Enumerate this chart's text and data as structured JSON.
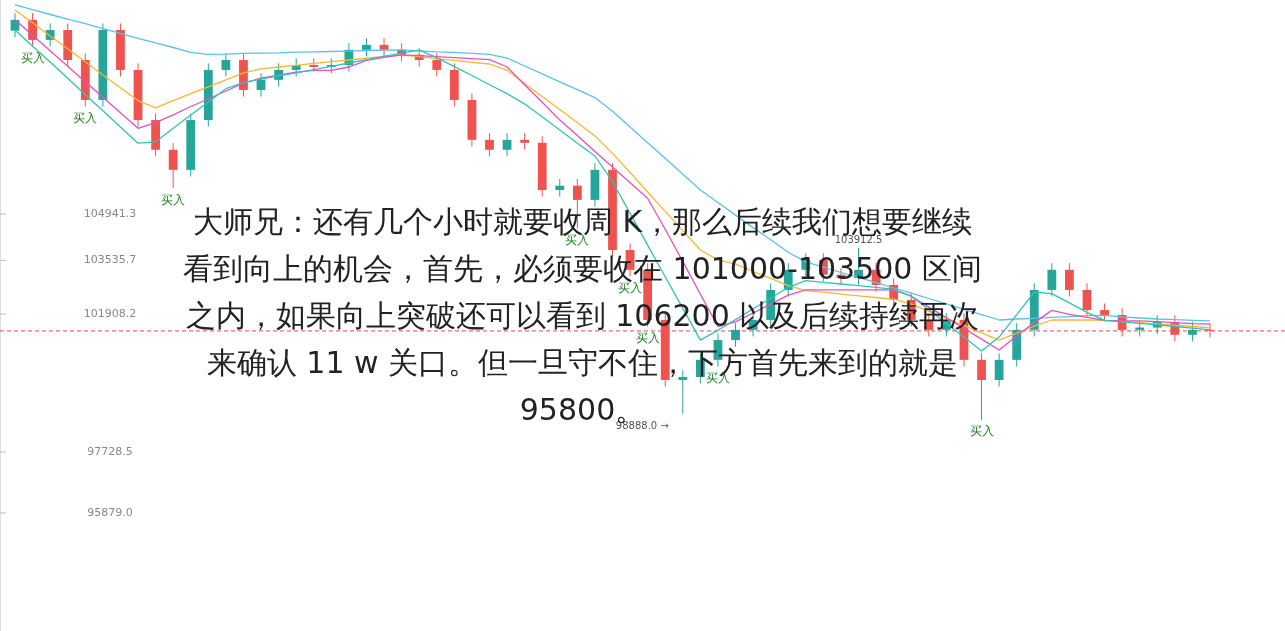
{
  "chart_data": {
    "type": "candlestick",
    "categories": [
      null,
      null,
      null,
      null,
      null,
      null,
      null,
      null,
      null,
      null,
      null,
      null,
      null,
      null,
      null,
      null,
      null,
      null,
      null,
      null,
      null,
      null,
      null,
      null,
      null,
      null,
      null,
      null,
      null,
      null,
      null,
      null,
      null,
      null,
      null,
      null,
      null,
      null,
      null,
      null,
      null,
      null,
      null,
      null,
      null,
      null,
      null,
      null,
      null,
      null,
      null,
      null,
      null,
      null,
      null,
      null,
      null,
      null,
      null,
      null,
      null,
      null,
      null,
      null,
      null,
      null,
      null,
      null,
      null
    ],
    "ohlc": [
      [
        110500,
        111030,
        110300,
        110830
      ],
      [
        110830,
        111030,
        110020,
        110220
      ],
      [
        110220,
        110720,
        110020,
        110520
      ],
      [
        110520,
        110720,
        109410,
        109610
      ],
      [
        109610,
        109810,
        108200,
        108400
      ],
      [
        108400,
        110720,
        108200,
        110520
      ],
      [
        110520,
        110720,
        109110,
        109310
      ],
      [
        109310,
        109510,
        107590,
        107790
      ],
      [
        107790,
        107990,
        106690,
        106890
      ],
      [
        106890,
        107090,
        105730,
        106280
      ],
      [
        106280,
        107990,
        106080,
        107790
      ],
      [
        107790,
        109510,
        107590,
        109310
      ],
      [
        109310,
        109810,
        109110,
        109610
      ],
      [
        109610,
        109810,
        108500,
        108700
      ],
      [
        108700,
        109210,
        108500,
        109010
      ],
      [
        109010,
        109510,
        108810,
        109310
      ],
      [
        109310,
        109660,
        109110,
        109460
      ],
      [
        109460,
        109660,
        109260,
        109400
      ],
      [
        109400,
        109660,
        109200,
        109460
      ],
      [
        109460,
        110120,
        109260,
        109920
      ],
      [
        109920,
        110270,
        109720,
        110070
      ],
      [
        110070,
        110270,
        109720,
        109920
      ],
      [
        109920,
        110120,
        109570,
        109770
      ],
      [
        109770,
        109970,
        109410,
        109610
      ],
      [
        109610,
        109810,
        109110,
        109310
      ],
      [
        109310,
        109510,
        108200,
        108400
      ],
      [
        108400,
        108600,
        106990,
        107190
      ],
      [
        107190,
        107390,
        106690,
        106890
      ],
      [
        106890,
        107390,
        106690,
        107190
      ],
      [
        107190,
        107390,
        106900,
        107100
      ],
      [
        107100,
        107300,
        105470,
        105670
      ],
      [
        105670,
        106000,
        105470,
        105800
      ],
      [
        105800,
        106000,
        104500,
        105370
      ],
      [
        105370,
        106480,
        105170,
        106280
      ],
      [
        106280,
        106480,
        103650,
        103850
      ],
      [
        103850,
        104050,
        103050,
        103250
      ],
      [
        103250,
        103450,
        101530,
        101730
      ],
      [
        101730,
        101930,
        99710,
        99910
      ],
      [
        99910,
        100200,
        98888,
        100000
      ],
      [
        100000,
        100720,
        99800,
        100520
      ],
      [
        100520,
        101320,
        100320,
        101120
      ],
      [
        101120,
        101630,
        100920,
        101430
      ],
      [
        101430,
        101930,
        101230,
        101730
      ],
      [
        101730,
        102840,
        101530,
        102640
      ],
      [
        102640,
        103450,
        102440,
        103250
      ],
      [
        103250,
        103750,
        103050,
        103550
      ],
      [
        103550,
        103750,
        102900,
        103100
      ],
      [
        103100,
        103300,
        102800,
        103000
      ],
      [
        103000,
        103912.5,
        102800,
        103250
      ],
      [
        103250,
        103450,
        102590,
        102790
      ],
      [
        102790,
        102990,
        102140,
        102340
      ],
      [
        102340,
        102540,
        101530,
        101730
      ],
      [
        101730,
        101930,
        101230,
        101430
      ],
      [
        101430,
        101930,
        101230,
        101730
      ],
      [
        101730,
        101930,
        100320,
        100520
      ],
      [
        100520,
        100720,
        98700,
        99910
      ],
      [
        99910,
        100720,
        99710,
        100520
      ],
      [
        100520,
        101630,
        100320,
        101430
      ],
      [
        101430,
        102840,
        101230,
        102640
      ],
      [
        102640,
        103450,
        102440,
        103250
      ],
      [
        103250,
        103450,
        102440,
        102640
      ],
      [
        102640,
        102840,
        101830,
        102030
      ],
      [
        102030,
        102230,
        101680,
        101880
      ],
      [
        101880,
        102080,
        101230,
        101430
      ],
      [
        101430,
        101700,
        101230,
        101500
      ],
      [
        101500,
        101870,
        101300,
        101670
      ],
      [
        101670,
        101870,
        101080,
        101280
      ],
      [
        101280,
        101680,
        101080,
        101430
      ],
      [
        101430,
        101630,
        101200,
        101400
      ]
    ],
    "value_labels": [
      null,
      "买入",
      null,
      null,
      "买入",
      null,
      null,
      null,
      null,
      "买入",
      null,
      null,
      null,
      null,
      null,
      null,
      null,
      null,
      null,
      null,
      null,
      null,
      null,
      null,
      null,
      null,
      null,
      null,
      null,
      null,
      null,
      null,
      "买入",
      null,
      null,
      "买入",
      "买入",
      null,
      "98888.0 →",
      null,
      "买入",
      null,
      null,
      null,
      null,
      null,
      null,
      null,
      "103912.5",
      null,
      null,
      null,
      null,
      null,
      null,
      "买入",
      null,
      null,
      null,
      null,
      null,
      null,
      null,
      null,
      null,
      null,
      null,
      null,
      null
    ],
    "series": [
      {
        "type": "line",
        "color": "#5bc0eb",
        "values": [
          111280,
          111140,
          110990,
          110850,
          110710,
          110560,
          110420,
          110270,
          110130,
          109990,
          109840,
          109780,
          109790,
          109810,
          109820,
          109830,
          109850,
          109860,
          109870,
          109880,
          109900,
          109910,
          109920,
          109890,
          109860,
          109840,
          109810,
          109780,
          109670,
          109430,
          109190,
          108950,
          108710,
          108470,
          108060,
          107580,
          107100,
          106630,
          106150,
          105670,
          105290,
          104910,
          104530,
          104160,
          103780,
          103490,
          103330,
          103170,
          103020,
          102860,
          102700,
          102540,
          102380,
          102220,
          102050,
          101890,
          101730,
          101760,
          101780,
          101810,
          101830,
          101860,
          101870,
          101820,
          101790,
          101760,
          101740,
          101720,
          101700
        ]
      },
      {
        "type": "line",
        "color": "#f7b731",
        "values": [
          111130,
          110740,
          110340,
          109950,
          109560,
          109160,
          108770,
          108380,
          108160,
          108380,
          108590,
          108800,
          109010,
          109220,
          109340,
          109400,
          109450,
          109510,
          109560,
          109610,
          109670,
          109720,
          109760,
          109710,
          109650,
          109600,
          109540,
          109490,
          109300,
          108900,
          108500,
          108110,
          107710,
          107310,
          106780,
          106200,
          105610,
          105020,
          104440,
          103850,
          103550,
          103420,
          103200,
          102990,
          102770,
          102620,
          102570,
          102510,
          102460,
          102410,
          102360,
          102210,
          101990,
          101780,
          101560,
          101340,
          101120,
          101330,
          101540,
          101730,
          101730,
          101730,
          101720,
          101680,
          101650,
          101610,
          101570,
          101530,
          101490
        ]
      },
      {
        "type": "line",
        "color": "#e84fbf",
        "values": [
          110830,
          110360,
          109890,
          109420,
          108950,
          108480,
          108010,
          107540,
          107710,
          107950,
          108200,
          108430,
          108670,
          108910,
          109060,
          109150,
          109240,
          109300,
          109300,
          109400,
          109600,
          109690,
          109770,
          109740,
          109710,
          109680,
          109650,
          109620,
          109400,
          108860,
          108330,
          107790,
          107320,
          106840,
          106370,
          105890,
          105420,
          104480,
          103500,
          102510,
          101530,
          101670,
          101940,
          102210,
          102480,
          102640,
          102640,
          102640,
          102640,
          102640,
          102640,
          102450,
          102120,
          101800,
          101470,
          101150,
          100820,
          101240,
          101650,
          102020,
          101900,
          101810,
          101720,
          101700,
          101700,
          101680,
          101650,
          101620,
          101600
        ]
      },
      {
        "type": "line",
        "color": "#2ec4b6",
        "values": [
          110520,
          110030,
          109550,
          109060,
          108560,
          108070,
          107580,
          107090,
          107130,
          107540,
          107940,
          108340,
          108740,
          108930,
          109030,
          109130,
          109220,
          109320,
          109420,
          109520,
          109620,
          109720,
          109820,
          109910,
          109680,
          109410,
          109140,
          108860,
          108590,
          108280,
          107890,
          107490,
          107090,
          106700,
          105920,
          104960,
          104000,
          103040,
          102080,
          101120,
          101420,
          101740,
          102070,
          102390,
          102720,
          102920,
          102870,
          102820,
          102770,
          102720,
          102660,
          102450,
          102040,
          101620,
          101210,
          100790,
          101210,
          101890,
          102570,
          102530,
          102250,
          101960,
          101720,
          101670,
          101630,
          101580,
          101530,
          101480,
          101430
        ]
      }
    ],
    "ylim": [
      92300,
      111430
    ],
    "yticks": [
      {
        "value": 104941.3,
        "label": "104941.3"
      },
      {
        "value": 103535.7,
        "label": "103535.7"
      },
      {
        "value": 101908.2,
        "label": "101908.2"
      },
      {
        "value": 97728.5,
        "label": "97728.5"
      },
      {
        "value": 95879.0,
        "label": "95879.0"
      }
    ],
    "ref_lines": [
      {
        "axis": "y",
        "value": 101397,
        "color": "#e04a59",
        "line_style": "dashed"
      }
    ],
    "annotations": [
      "大师兄：还有几个小时就要收周 K，那么后续我们想要继续看到向上的机会，首先，必须要收在 101000-103500 区间之内，如果向上突破还可以看到 106200 以及后续持续再次来确认 11 w 关口。但一旦守不住，下方首先来到的就是 95800。"
    ]
  }
}
